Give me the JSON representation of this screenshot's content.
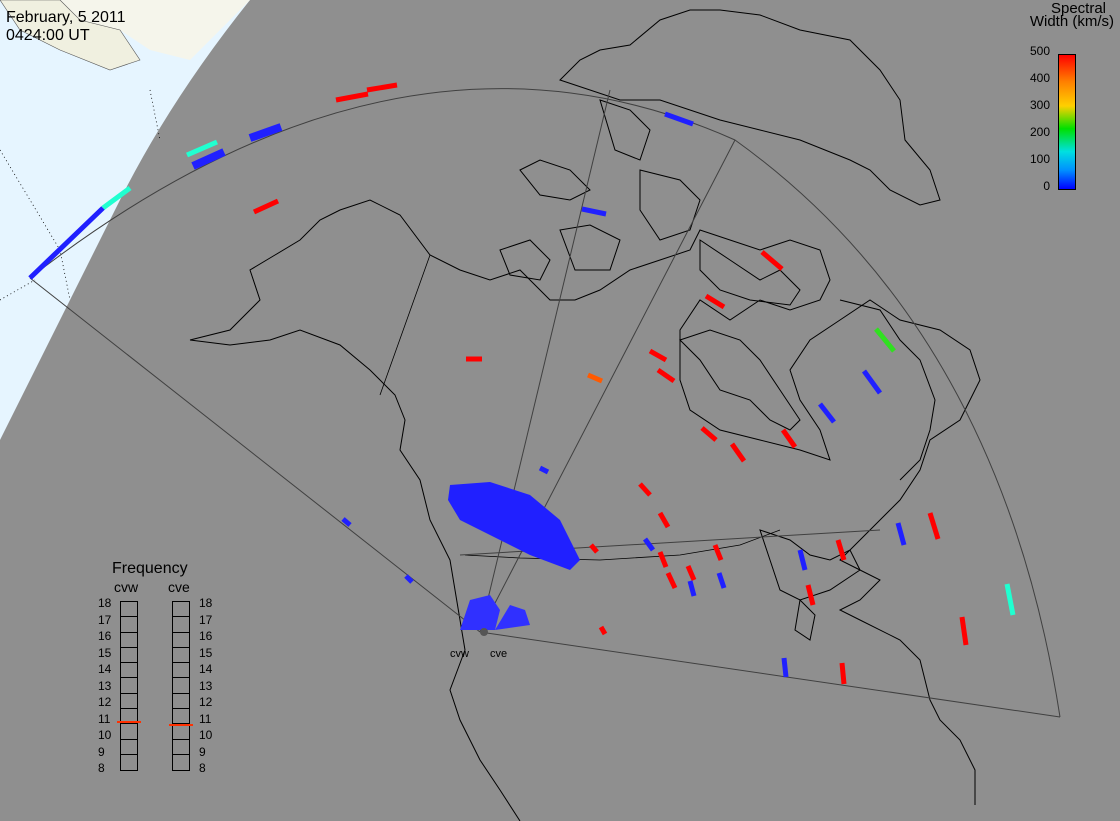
{
  "header": {
    "date": "February, 5 2011",
    "time": "0424:00 UT"
  },
  "legend": {
    "title_line1": "Spectral",
    "title_line2": "Width (km/s)",
    "ticks": [
      "500",
      "400",
      "300",
      "200",
      "100",
      "0"
    ]
  },
  "frequency_panel": {
    "title": "Frequency",
    "radars": [
      "cvw",
      "cve"
    ],
    "scale": [
      "18",
      "17",
      "16",
      "15",
      "14",
      "13",
      "12",
      "11",
      "10",
      "9",
      "8"
    ],
    "cvw_value_mhz": 10.9,
    "cve_value_mhz": 10.7
  },
  "sites": {
    "west": "cvw",
    "east": "cve"
  },
  "colors": {
    "background": "#8f8f8f",
    "daylight": "#f5f5eb",
    "nightside": "#e6f5ff",
    "coast": "#000000",
    "red": "#ff0000",
    "blue": "#2020ff",
    "cyan": "#20ffd0",
    "green": "#30e020",
    "orange": "#ff5a00"
  }
}
